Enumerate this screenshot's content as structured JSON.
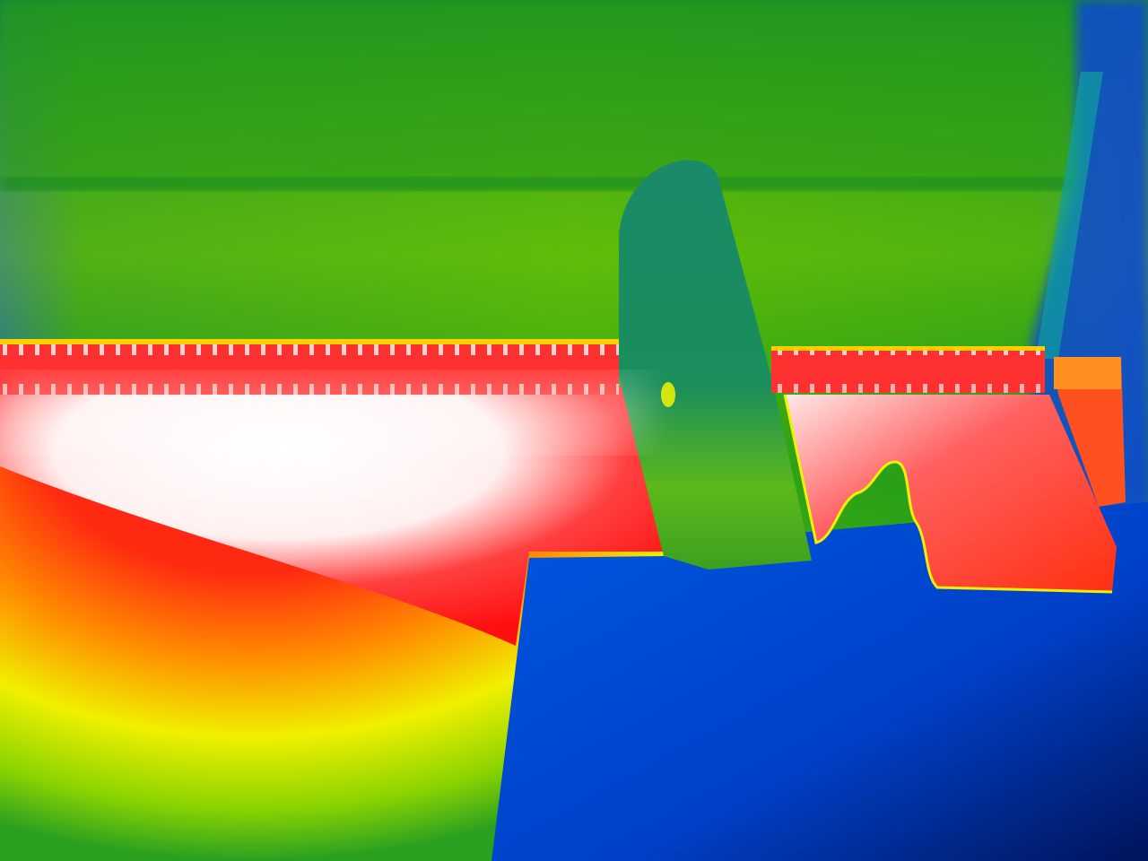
{
  "image": {
    "kind": "thermal-camera-photo",
    "palette": "rainbow",
    "palette_colors": {
      "coldest": "#001a6e",
      "cold": "#0050e0",
      "cool": "#00879a",
      "mid": "#1a9a10",
      "warm": "#9ad800",
      "hot_yellow": "#f4f200",
      "hotter": "#ff8800",
      "very_hot": "#ff1a1a",
      "hottest": "#ffffff"
    },
    "visible_text": []
  }
}
